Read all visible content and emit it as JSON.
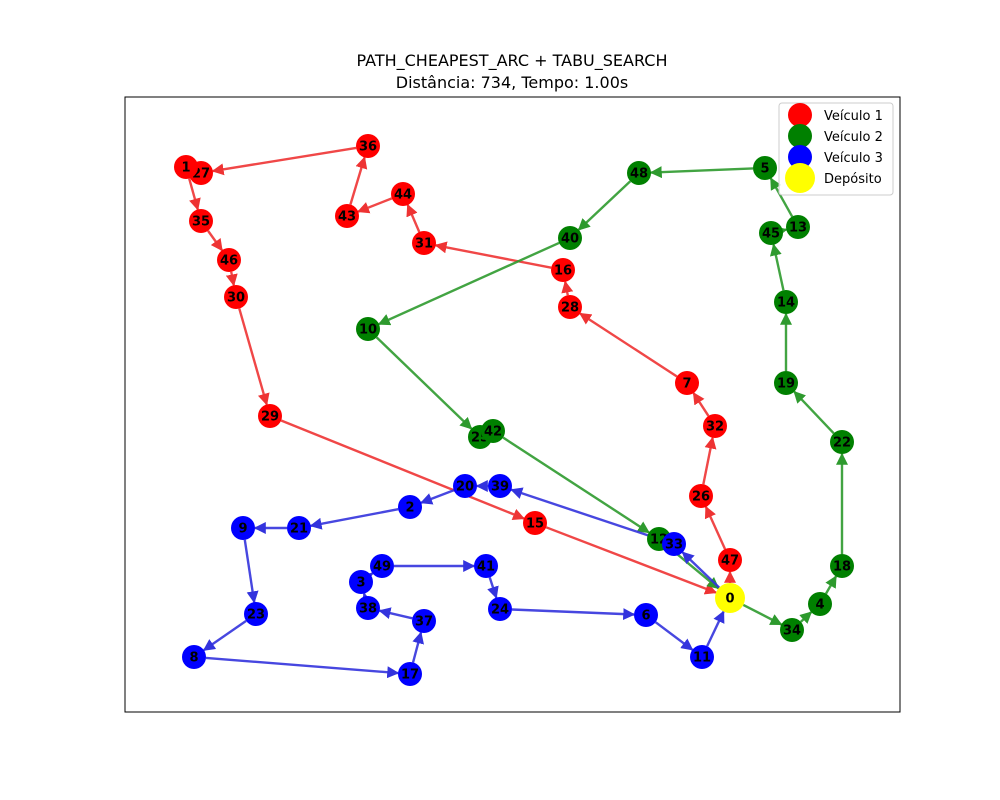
{
  "title_line1": "PATH_CHEAPEST_ARC + TABU_SEARCH",
  "title_line2": "Distância: 734, Tempo: 1.00s",
  "legend": [
    {
      "label": "Veículo 1",
      "color": "#ff0000"
    },
    {
      "label": "Veículo 2",
      "color": "#008000"
    },
    {
      "label": "Veículo 3",
      "color": "#0000ff"
    },
    {
      "label": "Depósito",
      "color": "#ffff00"
    }
  ],
  "depot": "0",
  "vehicles": [
    {
      "name": "Veículo 1",
      "color": "#ff0000",
      "edge_color": "#ee3333",
      "route": [
        "0",
        "47",
        "26",
        "32",
        "7",
        "28",
        "16",
        "31",
        "44",
        "43",
        "36",
        "27",
        "1",
        "35",
        "46",
        "30",
        "29",
        "15",
        "0"
      ]
    },
    {
      "name": "Veículo 2",
      "color": "#008000",
      "edge_color": "#2e9a2e",
      "route": [
        "0",
        "34",
        "4",
        "18",
        "22",
        "19",
        "14",
        "45",
        "13",
        "5",
        "48",
        "40",
        "10",
        "25",
        "42",
        "12",
        "0"
      ]
    },
    {
      "name": "Veículo 3",
      "color": "#0000ff",
      "edge_color": "#3333dd",
      "route": [
        "0",
        "33",
        "39",
        "20",
        "2",
        "21",
        "9",
        "23",
        "8",
        "17",
        "37",
        "38",
        "3",
        "49",
        "41",
        "24",
        "6",
        "11",
        "0"
      ]
    }
  ]
}
